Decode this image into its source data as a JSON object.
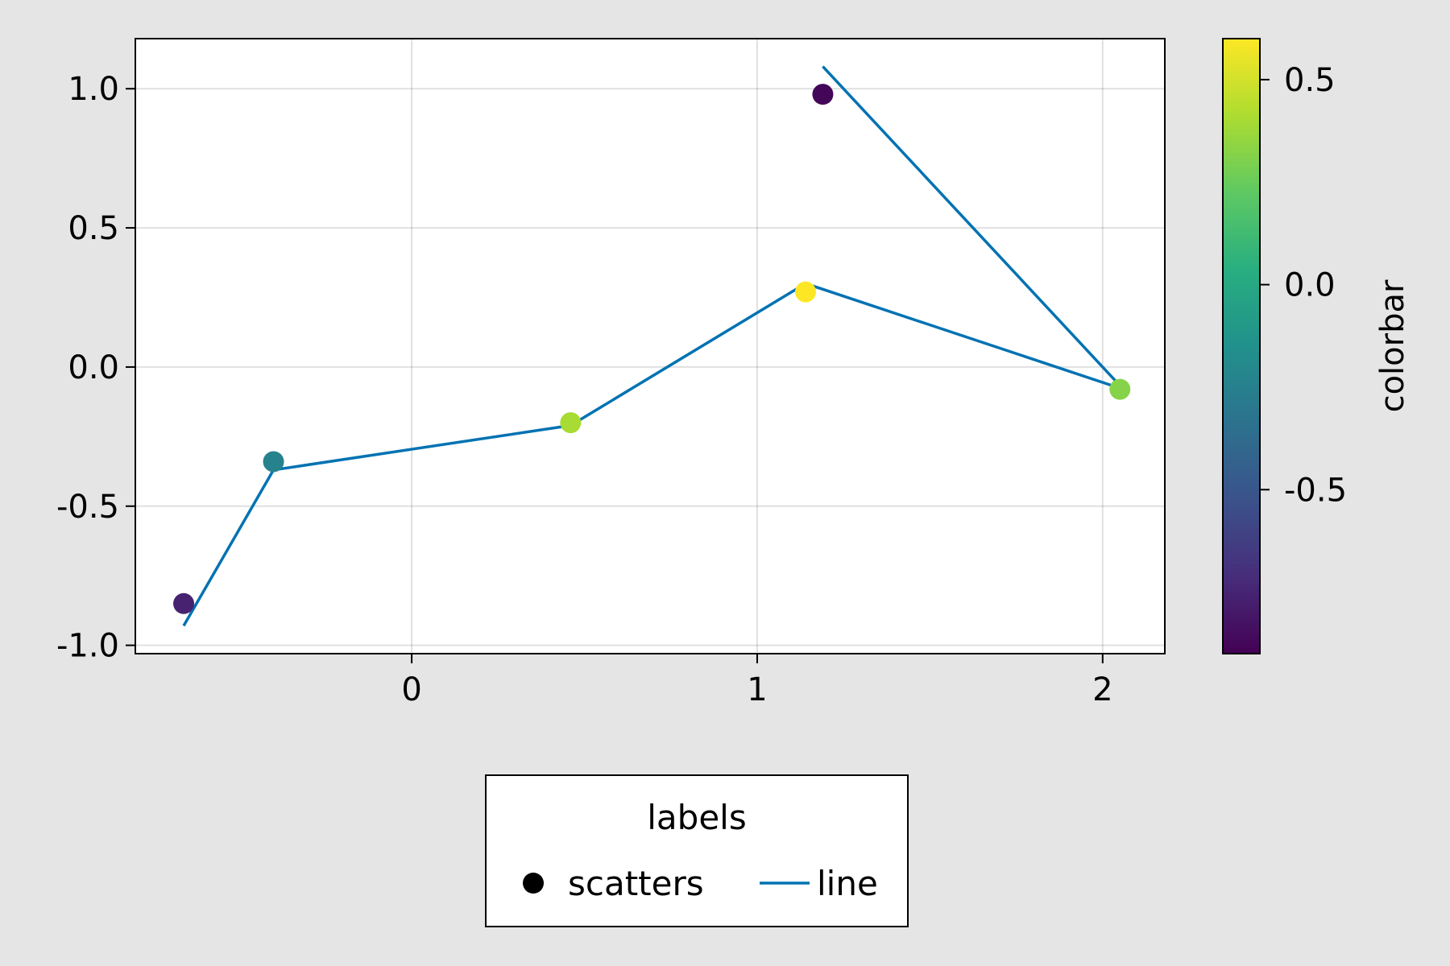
{
  "chart_data": {
    "type": "scatter",
    "title": "",
    "xlabel": "",
    "ylabel": "",
    "xlim": [
      -0.8,
      2.18
    ],
    "ylim": [
      -1.03,
      1.18
    ],
    "x_ticks": [
      {
        "value": 0,
        "label": "0"
      },
      {
        "value": 1,
        "label": "1"
      },
      {
        "value": 2,
        "label": "2"
      }
    ],
    "y_ticks": [
      {
        "value": -1.0,
        "label": "-1.0"
      },
      {
        "value": -0.5,
        "label": "-0.5"
      },
      {
        "value": 0.0,
        "label": "0.0"
      },
      {
        "value": 0.5,
        "label": "0.5"
      },
      {
        "value": 1.0,
        "label": "1.0"
      }
    ],
    "grid": true,
    "series": [
      {
        "name": "scatters",
        "type": "scatter",
        "points": [
          {
            "x": -0.66,
            "y": -0.85,
            "c": -0.76
          },
          {
            "x": -0.4,
            "y": -0.34,
            "c": -0.24
          },
          {
            "x": 0.46,
            "y": -0.2,
            "c": 0.4
          },
          {
            "x": 1.14,
            "y": 0.27,
            "c": 0.6
          },
          {
            "x": 1.19,
            "y": 0.98,
            "c": -0.88
          },
          {
            "x": 2.05,
            "y": -0.08,
            "c": 0.32
          }
        ]
      },
      {
        "name": "line",
        "type": "line",
        "color": "#0072b2",
        "points": [
          {
            "x": -0.66,
            "y": -0.93
          },
          {
            "x": -0.4,
            "y": -0.37
          },
          {
            "x": 0.46,
            "y": -0.21
          },
          {
            "x": 1.14,
            "y": 0.3
          },
          {
            "x": 2.06,
            "y": -0.08
          },
          {
            "x": 1.19,
            "y": 1.08
          }
        ]
      }
    ],
    "colorbar": {
      "label": "colorbar",
      "range": [
        -0.9,
        0.6
      ],
      "colormap": "viridis",
      "ticks": [
        {
          "value": -0.5,
          "label": "-0.5"
        },
        {
          "value": 0.0,
          "label": "0.0"
        },
        {
          "value": 0.5,
          "label": "0.5"
        }
      ]
    },
    "legend": {
      "title": "labels",
      "placement": "bottom",
      "entries": [
        {
          "label": "scatters",
          "marker": "circle",
          "color": "#000000"
        },
        {
          "label": "line",
          "marker": "line",
          "color": "#0072b2"
        }
      ]
    }
  }
}
